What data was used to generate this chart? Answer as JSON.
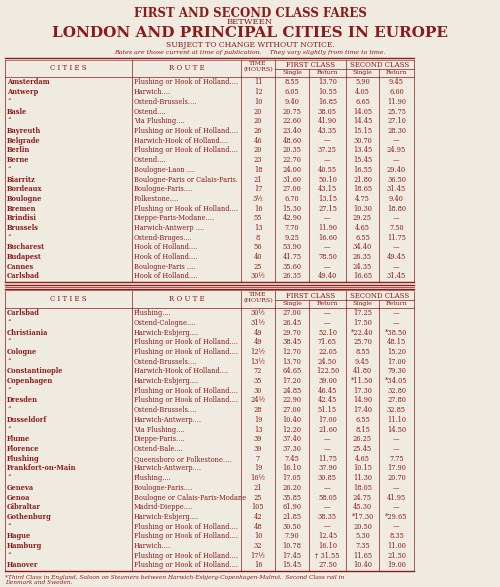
{
  "bg_color": "#f0ebe0",
  "text_color": "#8b1a1a",
  "title1": "FIRST AND SECOND CLASS FARES",
  "title2": "BETWEEN",
  "title3": "LONDON AND PRINCIPAL CITIES IN EUROPE",
  "title4": "SUBJECT TO CHANGE WITHOUT NOTICE.",
  "title5": "Rates are those current at time of publication.    They vary slightly from time to time.",
  "first_class_label": "FIRST CLASS",
  "second_class_label": "SECOND CLASS",
  "table1_rows": [
    [
      "Amsterdam",
      "Flushing or Hook of Holland....",
      "11",
      "8.55",
      "13.70",
      "5.90",
      "9.45"
    ],
    [
      "Antwerp",
      "Harwich....",
      "12",
      "6.05",
      "10.55",
      "4.05",
      "6.60"
    ],
    [
      "“",
      "Ostend-Brussels....",
      "10",
      "9.40",
      "16.85",
      "6.65",
      "11.90"
    ],
    [
      "Basle",
      "Ostend....",
      "20",
      "20.75",
      "38.05",
      "14.05",
      "25.75"
    ],
    [
      "“",
      "Via Flushing....",
      "20",
      "22.60",
      "41.90",
      "14.45",
      "27.10"
    ],
    [
      "Bayreuth",
      "Flushing or Hook of Holland....",
      "26",
      "23.40",
      "43.35",
      "15.15",
      "28.30"
    ],
    [
      "Belgrade",
      "Harwich-Hook of Holland....",
      "46",
      "48.60",
      "—",
      "30.70",
      "—"
    ],
    [
      "Berlin",
      "Flushing or Hook of Holland....",
      "20",
      "20.35",
      "37.25",
      "13.45",
      "24.95"
    ],
    [
      "Berne",
      "Ostend....",
      "23",
      "22.70",
      "—",
      "15.45",
      "—"
    ],
    [
      "“",
      "Boulogne-Laon ....",
      "18",
      "24.00",
      "40.55",
      "16.55",
      "29.40"
    ],
    [
      "Biarritz",
      "Boulogne-Paris or Calais-Paris.",
      "21",
      "31.60",
      "50.10",
      "21.80",
      "36.50"
    ],
    [
      "Bordeaux",
      "Boulogne-Paris....",
      "17",
      "27.00",
      "43.15",
      "18.65",
      "31.45"
    ],
    [
      "Boulogne",
      "Folkestone....",
      "3½",
      "6.70",
      "13.15",
      "4.75",
      "9.40"
    ],
    [
      "Bremen",
      "Flushing or Hook of Holland....",
      "16",
      "15.30",
      "27.15",
      "10.30",
      "18.80"
    ],
    [
      "Brindisi",
      "Dieppe-Paris-Modane....",
      "55",
      "42.90",
      "—",
      "29.25",
      "—"
    ],
    [
      "Brussels",
      "Harwich-Antwerp ....",
      "13",
      "7.70",
      "11.90",
      "4.65",
      "7.50"
    ],
    [
      "“",
      "Ostend-Bruges....",
      "8",
      "9.25",
      "16.60",
      "6.55",
      "11.75"
    ],
    [
      "Bucharest",
      "Hook of Holland....",
      "56",
      "53.90",
      "—",
      "34.40",
      "—"
    ],
    [
      "Budapest",
      "Hook of Holland....",
      "40",
      "41.75",
      "78.50",
      "26.35",
      "49.45"
    ],
    [
      "Cannes",
      "Boulogne-Paris ....",
      "25",
      "35.60",
      "—",
      "24.35",
      "—"
    ],
    [
      "Carlsbad",
      "Hook of Holland....",
      "30½",
      "26.35",
      "49.40",
      "16.65",
      "31.45"
    ]
  ],
  "table2_rows": [
    [
      "Carlsbad",
      "Flushing....",
      "30½",
      "27.00",
      "—",
      "17.25",
      "—"
    ],
    [
      "“",
      "Ostend-Cologne....",
      "31½",
      "26.45",
      "—",
      "17.50",
      "—"
    ],
    [
      "Christiania",
      "Harwich-Esbjerg....",
      "49",
      "29.70",
      "52.10",
      "*22.40",
      "*38.50"
    ],
    [
      "“",
      "Flushing or Hook of Holland....",
      "49",
      "38.45",
      "71.65",
      "25.70",
      "48.15"
    ],
    [
      "Cologne",
      "Flushing or Hook of Holland....",
      "12½",
      "12.70",
      "22.05",
      "8.55",
      "15.20"
    ],
    [
      "“",
      "Ostend-Brussels....",
      "13½",
      "13.70",
      "24.50",
      "9.45",
      "17.00"
    ],
    [
      "Constantinople",
      "Harwich-Hook of Holland....",
      "72",
      "64.65",
      "122.50",
      "41.80",
      "79.30"
    ],
    [
      "Copenhagen",
      "Harwich-Esbjerg....",
      "35",
      "17.20",
      "39.00",
      "*11.50",
      "*34.05"
    ],
    [
      "“",
      "Flushing or Hook of Holland....",
      "30",
      "24.85",
      "46.45",
      "17.30",
      "32.80"
    ],
    [
      "Dresden",
      "Flushing or Hook of Holland....",
      "24½",
      "22.90",
      "42.45",
      "14.90",
      "27.80"
    ],
    [
      "“",
      "Ostend-Brussels....",
      "28",
      "27.00",
      "51.15",
      "17.40",
      "32.85"
    ],
    [
      "Dusseldorf",
      "Harwich-Antwerp....",
      "19",
      "10.40",
      "17.00",
      "6.55",
      "11.10"
    ],
    [
      "“",
      "Via Flushing....",
      "13",
      "12.20",
      "21.60",
      "8.15",
      "14.50"
    ],
    [
      "Flume",
      "Dieppe-Paris....",
      "39",
      "37.40",
      "—",
      "26.25",
      "—"
    ],
    [
      "Florence",
      "Ostend-Bale....",
      "39",
      "37.30",
      "—",
      "25.45",
      "—"
    ],
    [
      "Flushing",
      "Queensboro or Folkestone....",
      "7",
      "7.45",
      "11.75",
      "4.65",
      "7.75"
    ],
    [
      "Frankfort-on-Main",
      "Harwich-Antwerp....",
      "19",
      "16.10",
      "37.90",
      "10.15",
      "17.90"
    ],
    [
      "“",
      "Flushing....",
      "16½",
      "17.05",
      "30.85",
      "11.30",
      "20.70"
    ],
    [
      "Geneva",
      "Boulogne-Paris....",
      "21",
      "26.20",
      "—",
      "18.05",
      "—"
    ],
    [
      "Genoa",
      "Boulogne or Calais-Paris-Modane",
      "25",
      "35.85",
      "58.05",
      "24.75",
      "41.95"
    ],
    [
      "Gibraltar",
      "Madrid-Dieppe....",
      "105",
      "61.90",
      "—",
      "45.30",
      "—"
    ],
    [
      "Gothenburg",
      "Harwich-Esbjerg....",
      "42",
      "21.85",
      "38.35",
      "*17.30",
      "*29.65"
    ],
    [
      "“",
      "Flushing or Hook of Holland....",
      "48",
      "30.50",
      "—",
      "20.50",
      "—"
    ],
    [
      "Hague",
      "Flushing or Hook of Holland....",
      "10",
      "7.90",
      "12.45",
      "5.30",
      "8.35"
    ],
    [
      "Hamburg",
      "Harwich....",
      "32",
      "10.78",
      "16.10",
      "7.35",
      "11.00"
    ],
    [
      "“",
      "Flushing or Hook of Holland....",
      "17½",
      "17.45",
      "† 31.55",
      "11.65",
      "21.50"
    ],
    [
      "Hanover",
      "Flushing or Hook of Holland....",
      "16",
      "15.45",
      "27.50",
      "10.40",
      "19.00"
    ]
  ],
  "footnote": "*Third Class in England, Saloon on Steamers between Harwich-Esbjerg-Copenhagen-Malmö.  Second Class rail in\nDenmark and Sweden."
}
